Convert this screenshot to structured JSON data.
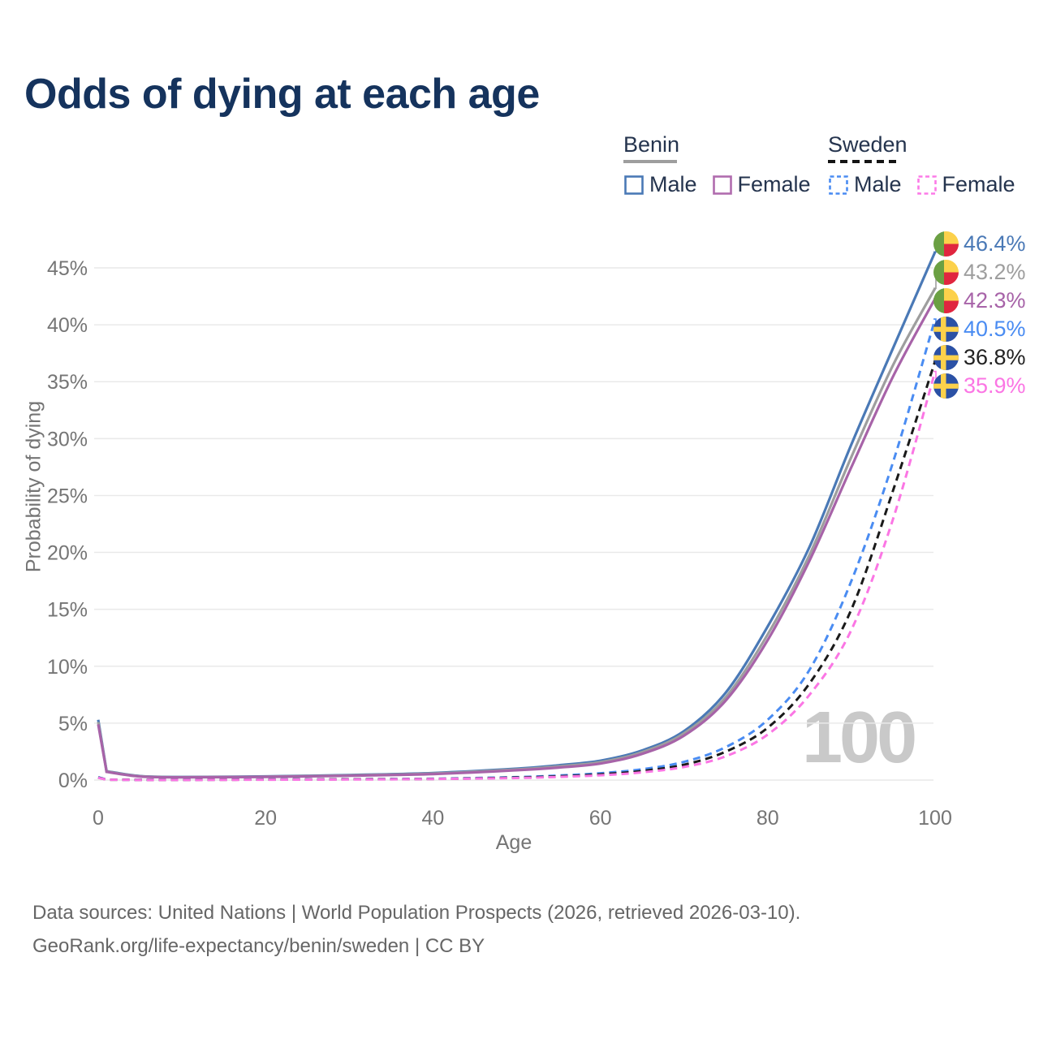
{
  "title": "Odds of dying at each age",
  "watermark": "100",
  "footer": {
    "line1": "Data sources: United Nations | World Population Prospects (2026, retrieved 2026-03-10).",
    "line2": "GeoRank.org/life-expectancy/benin/sweden | CC BY"
  },
  "legend": {
    "groups": [
      {
        "label": "Benin",
        "line_style": "solid",
        "underline_color": "#9e9e9e",
        "items": [
          {
            "label": "Male",
            "color": "#4a79b6",
            "dashed": false
          },
          {
            "label": "Female",
            "color": "#b06cae",
            "dashed": false
          }
        ]
      },
      {
        "label": "Sweden",
        "line_style": "dashed",
        "underline_color": "#141414",
        "items": [
          {
            "label": "Male",
            "color": "#4a8cf2",
            "dashed": true
          },
          {
            "label": "Female",
            "color": "#fc7ae7",
            "dashed": true
          }
        ]
      }
    ]
  },
  "colors": {
    "title_text": "#15335d",
    "legend_text": "#25344e",
    "axis_text": "#757575",
    "grid": "#e9e9e9",
    "footer_text": "#666666",
    "watermark": "#c9c9c9"
  },
  "flags": {
    "benin": {
      "green": "#6ba043",
      "yellow": "#fcd14b",
      "red": "#e0263f"
    },
    "sweden": {
      "blue": "#2b51a5",
      "yellow": "#fcd14b"
    }
  },
  "chart_data": {
    "type": "line",
    "title": "Odds of dying at each age",
    "xlabel": "Age",
    "ylabel": "Probability of dying",
    "x_ticks": [
      0,
      20,
      40,
      60,
      80,
      100
    ],
    "y_ticks_pct": [
      0,
      5,
      10,
      15,
      20,
      25,
      30,
      35,
      40,
      45
    ],
    "xlim": [
      0,
      100
    ],
    "ylim_pct": [
      0,
      47
    ],
    "grid": "horizontal",
    "legend_position": "top-right",
    "ages": [
      0,
      1,
      5,
      10,
      20,
      30,
      40,
      50,
      55,
      60,
      65,
      70,
      75,
      80,
      85,
      90,
      95,
      100
    ],
    "series": [
      {
        "id": "benin-male",
        "name": "Benin Male",
        "country": "Benin",
        "sex": "male",
        "color": "#4a79b6",
        "dashed": false,
        "flag": "benin",
        "end_label": "46.4%",
        "values_pct": [
          5.3,
          0.78,
          0.35,
          0.27,
          0.32,
          0.44,
          0.62,
          1.0,
          1.3,
          1.7,
          2.6,
          4.3,
          7.7,
          13.5,
          20.5,
          29.5,
          38.0,
          46.4
        ]
      },
      {
        "id": "benin-both",
        "name": "Benin (both sexes)",
        "country": "Benin",
        "sex": "both",
        "color": "#9e9e9e",
        "dashed": false,
        "flag": "benin",
        "end_label": "43.2%",
        "values_pct": [
          5.1,
          0.75,
          0.33,
          0.25,
          0.3,
          0.41,
          0.57,
          0.93,
          1.2,
          1.57,
          2.45,
          4.1,
          7.3,
          12.8,
          19.8,
          28.4,
          36.5,
          43.2
        ]
      },
      {
        "id": "benin-female",
        "name": "Benin Female",
        "country": "Benin",
        "sex": "female",
        "color": "#a763a8",
        "dashed": false,
        "flag": "benin",
        "end_label": "42.3%",
        "values_pct": [
          4.9,
          0.72,
          0.31,
          0.24,
          0.28,
          0.38,
          0.53,
          0.86,
          1.1,
          1.45,
          2.3,
          3.9,
          7.0,
          12.3,
          19.3,
          27.5,
          35.5,
          42.3
        ]
      },
      {
        "id": "sweden-male",
        "name": "Sweden Male",
        "country": "Sweden",
        "sex": "male",
        "color": "#4a8cf2",
        "dashed": true,
        "flag": "sweden",
        "end_label": "40.5%",
        "values_pct": [
          0.25,
          0.04,
          0.02,
          0.02,
          0.05,
          0.08,
          0.12,
          0.26,
          0.4,
          0.6,
          0.95,
          1.6,
          2.9,
          5.3,
          9.7,
          17.5,
          28.0,
          40.5
        ]
      },
      {
        "id": "sweden-both",
        "name": "Sweden (both sexes)",
        "country": "Sweden",
        "sex": "both",
        "color": "#1a1a1a",
        "dashed": true,
        "flag": "sweden",
        "end_label": "36.8%",
        "values_pct": [
          0.22,
          0.03,
          0.02,
          0.02,
          0.04,
          0.07,
          0.1,
          0.22,
          0.33,
          0.5,
          0.8,
          1.35,
          2.5,
          4.6,
          8.5,
          15.0,
          25.5,
          36.8
        ]
      },
      {
        "id": "sweden-female",
        "name": "Sweden Female",
        "country": "Sweden",
        "sex": "female",
        "color": "#fb76e4",
        "dashed": true,
        "flag": "sweden",
        "end_label": "35.9%",
        "values_pct": [
          0.2,
          0.03,
          0.01,
          0.01,
          0.03,
          0.05,
          0.09,
          0.18,
          0.28,
          0.42,
          0.68,
          1.15,
          2.1,
          4.0,
          7.5,
          13.2,
          23.0,
          35.9
        ]
      }
    ]
  }
}
